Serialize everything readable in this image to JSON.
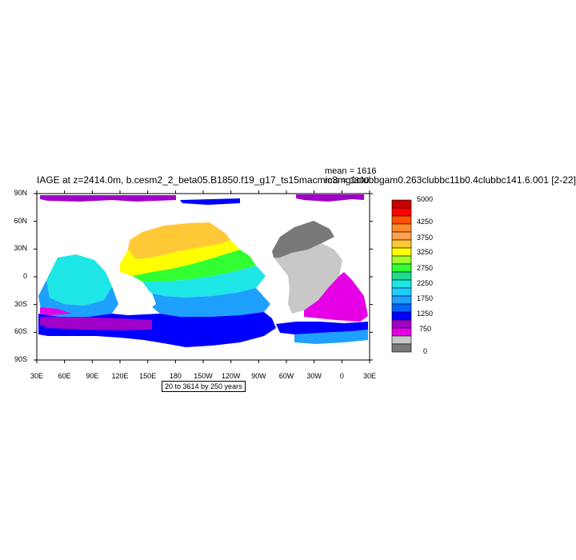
{
  "title": "IAGE at z=2414.0m, b.cesm2_2_beta05.B1850.f19_g17_ts15macmic3mg1clubbgam0.263clubbc11b0.4clubbc141.6.001 [2-22]",
  "stats": {
    "mean": "mean = 1616",
    "rms": "rms = 1800"
  },
  "lat_ticks": [
    "90N",
    "60N",
    "30N",
    "0",
    "30S",
    "60S",
    "90S"
  ],
  "lon_ticks": [
    "30E",
    "60E",
    "90E",
    "120E",
    "150E",
    "180",
    "150W",
    "120W",
    "90W",
    "60W",
    "30W",
    "0",
    "30E"
  ],
  "info_box": "20 to 3614 by 250 years",
  "colorbar": {
    "labels": [
      "5000",
      "4250",
      "3750",
      "3250",
      "2750",
      "2250",
      "1750",
      "1250",
      "750",
      "0"
    ],
    "colors": [
      "#c80000",
      "#ff0000",
      "#ff5000",
      "#ff8c28",
      "#ffa050",
      "#ffc836",
      "#ffff00",
      "#a0ff2a",
      "#32ff32",
      "#1edc8c",
      "#1ee6e6",
      "#1ecdff",
      "#1ea0ff",
      "#0064ff",
      "#0000ff",
      "#a000c8",
      "#e600e6",
      "#c8c8c8",
      "#787878"
    ]
  },
  "map_colors": {
    "ocean_old": "#ffff00",
    "ocean_warm": "#ffc836",
    "ocean_mid": "#32ff32",
    "ocean_cyan": "#1ee6e6",
    "ocean_blue": "#1ea0ff",
    "ocean_deep": "#0000ff",
    "ocean_young": "#e600e6",
    "ocean_violet": "#a000c8",
    "north_atlantic": "#787878",
    "south_atlantic": "#c8c8c8"
  }
}
